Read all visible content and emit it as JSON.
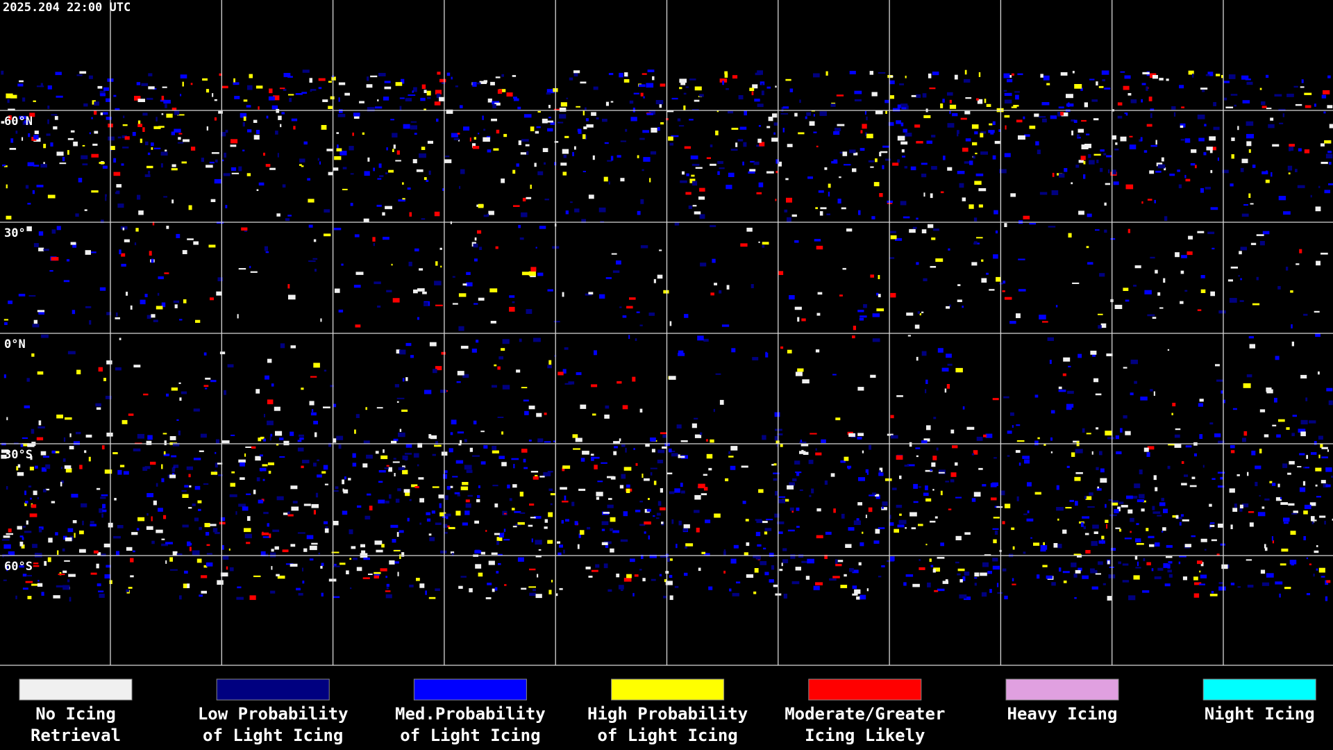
{
  "header": {
    "timestamp": "2025.204 22:00 UTC"
  },
  "map": {
    "lat_labels": [
      "60°N",
      "30°",
      "0°N",
      "30°S",
      "60°S"
    ]
  },
  "legend": [
    {
      "lines": [
        "No Icing",
        "Retrieval"
      ],
      "color": "#f0f0f0"
    },
    {
      "lines": [
        "Low Probability",
        "of Light Icing"
      ],
      "color": "#000080"
    },
    {
      "lines": [
        "Med.Probability",
        "of Light Icing"
      ],
      "color": "#0000ff"
    },
    {
      "lines": [
        "High Probability",
        "of Light Icing"
      ],
      "color": "#ffff00"
    },
    {
      "lines": [
        "Moderate/Greater",
        "Icing Likely"
      ],
      "color": "#ff0000"
    },
    {
      "lines": [
        "Heavy Icing"
      ],
      "color": "#e0a0e0"
    },
    {
      "lines": [
        "Night Icing"
      ],
      "color": "#00ffff"
    }
  ]
}
